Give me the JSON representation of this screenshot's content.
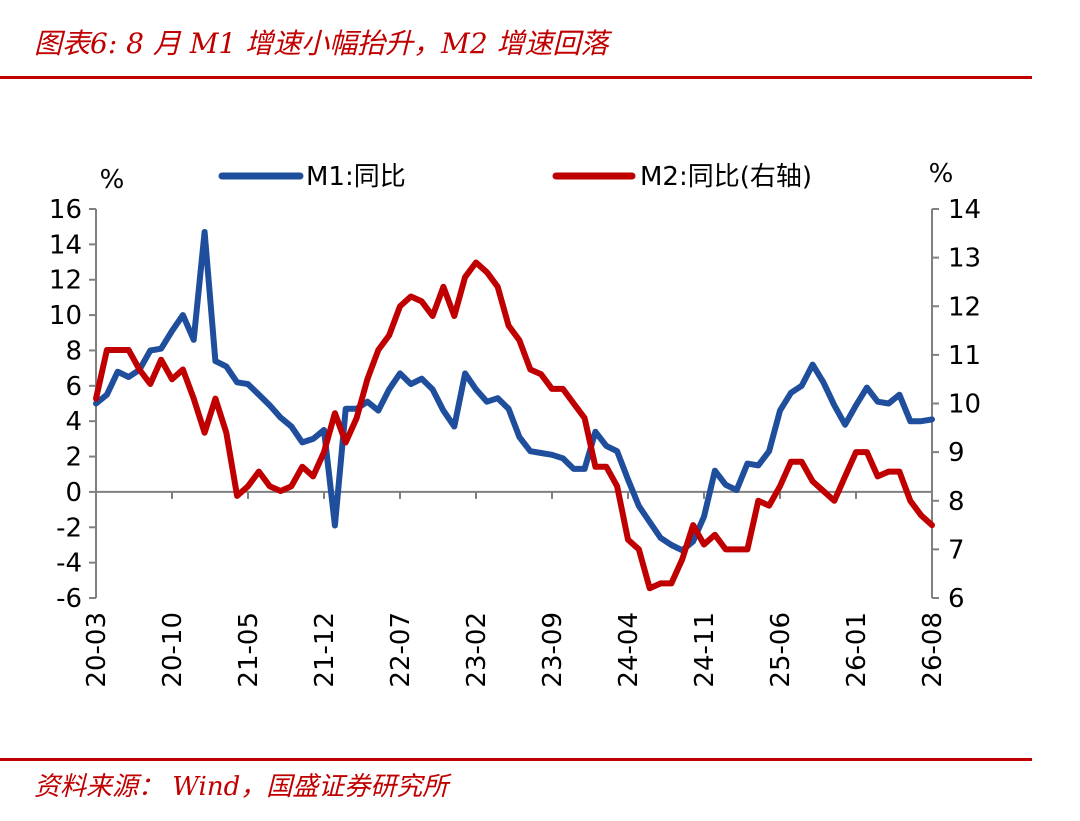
{
  "header": {
    "title": "图表6:  8 月 M1 增速小幅抬升，M2 增速回落"
  },
  "footer": {
    "source": "资料来源： Wind，国盛证券研究所"
  },
  "colors": {
    "accent": "#c00000",
    "m1": "#1f4e9c",
    "m2": "#c00000",
    "axis": "#808080"
  },
  "chart_data": {
    "type": "line",
    "title": "图表6:  8 月 M1 增速小幅抬升，M2 增速回落",
    "left_unit": "%",
    "right_unit": "%",
    "ylim_left": [
      -6,
      16
    ],
    "ylim_right": [
      6,
      14
    ],
    "yticks_left": [
      "-6",
      "-4",
      "-2",
      "0",
      "2",
      "4",
      "6",
      "8",
      "10",
      "12",
      "14",
      "16"
    ],
    "yticks_right": [
      "6",
      "7",
      "8",
      "9",
      "10",
      "11",
      "12",
      "13",
      "14"
    ],
    "x_range": [
      "20-03",
      "26-08"
    ],
    "xticks": [
      "20-03",
      "20-10",
      "21-05",
      "21-12",
      "22-07",
      "23-02",
      "23-09",
      "24-04",
      "24-11",
      "25-06",
      "26-01",
      "26-08"
    ],
    "legend_position": "top",
    "series": [
      {
        "name": "M1:同比",
        "axis": "left",
        "color": "#1f4e9c",
        "points": [
          [
            "20-03",
            5.0
          ],
          [
            "20-04",
            5.5
          ],
          [
            "20-05",
            6.8
          ],
          [
            "20-06",
            6.5
          ],
          [
            "20-07",
            6.9
          ],
          [
            "20-08",
            8.0
          ],
          [
            "20-09",
            8.1
          ],
          [
            "20-10",
            9.1
          ],
          [
            "20-11",
            10.0
          ],
          [
            "20-12",
            8.6
          ],
          [
            "21-01",
            14.7
          ],
          [
            "21-02",
            7.4
          ],
          [
            "21-03",
            7.1
          ],
          [
            "21-04",
            6.2
          ],
          [
            "21-05",
            6.1
          ],
          [
            "21-06",
            5.5
          ],
          [
            "21-07",
            4.9
          ],
          [
            "21-08",
            4.2
          ],
          [
            "21-09",
            3.7
          ],
          [
            "21-10",
            2.8
          ],
          [
            "21-11",
            3.0
          ],
          [
            "21-12",
            3.5
          ],
          [
            "22-01",
            -1.9
          ],
          [
            "22-02",
            4.7
          ],
          [
            "22-03",
            4.7
          ],
          [
            "22-04",
            5.1
          ],
          [
            "22-05",
            4.6
          ],
          [
            "22-06",
            5.8
          ],
          [
            "22-07",
            6.7
          ],
          [
            "22-08",
            6.1
          ],
          [
            "22-09",
            6.4
          ],
          [
            "22-10",
            5.8
          ],
          [
            "22-11",
            4.6
          ],
          [
            "22-12",
            3.7
          ],
          [
            "23-01",
            6.7
          ],
          [
            "23-02",
            5.8
          ],
          [
            "23-03",
            5.1
          ],
          [
            "23-04",
            5.3
          ],
          [
            "23-05",
            4.7
          ],
          [
            "23-06",
            3.1
          ],
          [
            "23-07",
            2.3
          ],
          [
            "23-08",
            2.2
          ],
          [
            "23-09",
            2.1
          ],
          [
            "23-10",
            1.9
          ],
          [
            "23-11",
            1.3
          ],
          [
            "23-12",
            1.3
          ],
          [
            "24-01",
            3.4
          ],
          [
            "24-02",
            2.6
          ],
          [
            "24-03",
            2.3
          ],
          [
            "24-04",
            0.7
          ],
          [
            "24-05",
            -0.8
          ],
          [
            "24-06",
            -1.7
          ],
          [
            "24-07",
            -2.6
          ],
          [
            "24-08",
            -3.0
          ],
          [
            "24-09",
            -3.3
          ],
          [
            "24-10",
            -2.8
          ],
          [
            "24-11",
            -1.4
          ],
          [
            "24-12",
            1.2
          ],
          [
            "25-01",
            0.4
          ],
          [
            "25-02",
            0.1
          ],
          [
            "25-03",
            1.6
          ],
          [
            "25-04",
            1.5
          ],
          [
            "25-05",
            2.3
          ],
          [
            "25-06",
            4.6
          ],
          [
            "25-07",
            5.6
          ],
          [
            "25-08",
            6.0
          ],
          [
            "25-09",
            7.2
          ],
          [
            "25-10",
            6.2
          ],
          [
            "25-11",
            4.9
          ],
          [
            "25-12",
            3.8
          ],
          [
            "26-01",
            4.9
          ],
          [
            "26-02",
            5.9
          ],
          [
            "26-03",
            5.1
          ],
          [
            "26-04",
            5.0
          ],
          [
            "26-05",
            5.5
          ],
          [
            "26-06",
            4.0
          ],
          [
            "26-07",
            4.0
          ],
          [
            "26-08",
            4.1
          ]
        ]
      },
      {
        "name": "M2:同比(右轴)",
        "axis": "right",
        "color": "#c00000",
        "points": [
          [
            "20-03",
            10.1
          ],
          [
            "20-04",
            11.1
          ],
          [
            "20-05",
            11.1
          ],
          [
            "20-06",
            11.1
          ],
          [
            "20-07",
            10.7
          ],
          [
            "20-08",
            10.4
          ],
          [
            "20-09",
            10.9
          ],
          [
            "20-10",
            10.5
          ],
          [
            "20-11",
            10.7
          ],
          [
            "20-12",
            10.1
          ],
          [
            "21-01",
            9.4
          ],
          [
            "21-02",
            10.1
          ],
          [
            "21-03",
            9.4
          ],
          [
            "21-04",
            8.1
          ],
          [
            "21-05",
            8.3
          ],
          [
            "21-06",
            8.6
          ],
          [
            "21-07",
            8.3
          ],
          [
            "21-08",
            8.2
          ],
          [
            "21-09",
            8.3
          ],
          [
            "21-10",
            8.7
          ],
          [
            "21-11",
            8.5
          ],
          [
            "21-12",
            9.0
          ],
          [
            "22-01",
            9.8
          ],
          [
            "22-02",
            9.2
          ],
          [
            "22-03",
            9.7
          ],
          [
            "22-04",
            10.5
          ],
          [
            "22-05",
            11.1
          ],
          [
            "22-06",
            11.4
          ],
          [
            "22-07",
            12.0
          ],
          [
            "22-08",
            12.2
          ],
          [
            "22-09",
            12.1
          ],
          [
            "22-10",
            11.8
          ],
          [
            "22-11",
            12.4
          ],
          [
            "22-12",
            11.8
          ],
          [
            "23-01",
            12.6
          ],
          [
            "23-02",
            12.9
          ],
          [
            "23-03",
            12.7
          ],
          [
            "23-04",
            12.4
          ],
          [
            "23-05",
            11.6
          ],
          [
            "23-06",
            11.3
          ],
          [
            "23-07",
            10.7
          ],
          [
            "23-08",
            10.6
          ],
          [
            "23-09",
            10.3
          ],
          [
            "23-10",
            10.3
          ],
          [
            "23-11",
            10.0
          ],
          [
            "23-12",
            9.7
          ],
          [
            "24-01",
            8.7
          ],
          [
            "24-02",
            8.7
          ],
          [
            "24-03",
            8.3
          ],
          [
            "24-04",
            7.2
          ],
          [
            "24-05",
            7.0
          ],
          [
            "24-06",
            6.2
          ],
          [
            "24-07",
            6.3
          ],
          [
            "24-08",
            6.3
          ],
          [
            "24-09",
            6.8
          ],
          [
            "24-10",
            7.5
          ],
          [
            "24-11",
            7.1
          ],
          [
            "24-12",
            7.3
          ],
          [
            "25-01",
            7.0
          ],
          [
            "25-02",
            7.0
          ],
          [
            "25-03",
            7.0
          ],
          [
            "25-04",
            8.0
          ],
          [
            "25-05",
            7.9
          ],
          [
            "25-06",
            8.3
          ],
          [
            "25-07",
            8.8
          ],
          [
            "25-08",
            8.8
          ],
          [
            "25-09",
            8.4
          ],
          [
            "25-10",
            8.2
          ],
          [
            "25-11",
            8.0
          ],
          [
            "25-12",
            8.5
          ],
          [
            "26-01",
            9.0
          ],
          [
            "26-02",
            9.0
          ],
          [
            "26-03",
            8.5
          ],
          [
            "26-04",
            8.6
          ],
          [
            "26-05",
            8.6
          ],
          [
            "26-06",
            8.0
          ],
          [
            "26-07",
            7.7
          ],
          [
            "26-08",
            7.5
          ]
        ]
      }
    ]
  }
}
